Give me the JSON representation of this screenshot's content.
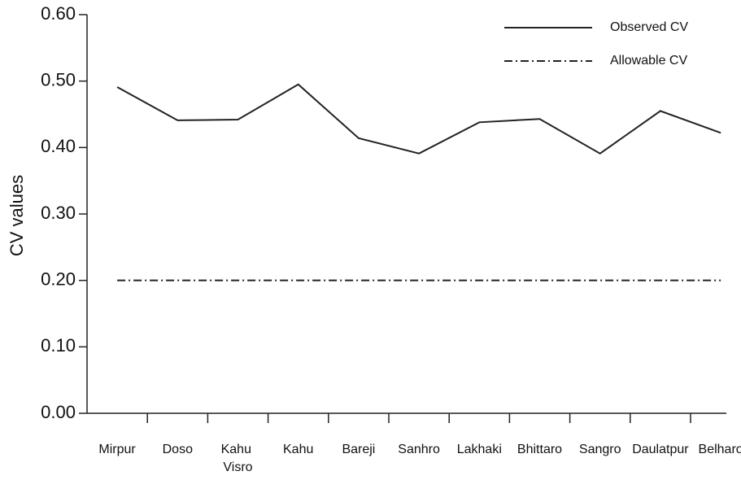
{
  "chart_data": {
    "type": "line",
    "y_label": "CV values",
    "categories": [
      "Mirpur",
      "Doso",
      "Kahu Visro",
      "Kahu",
      "Bareji",
      "Sanhro",
      "Lakhaki",
      "Bhittaro",
      "Sangro",
      "Daulatpur",
      "Belharo"
    ],
    "series": [
      {
        "name": "Observed CV",
        "color": "#222222",
        "dash": "solid",
        "values": [
          0.491,
          0.441,
          0.442,
          0.495,
          0.414,
          0.391,
          0.438,
          0.443,
          0.391,
          0.455,
          0.422
        ]
      },
      {
        "name": "Allowable CV",
        "color": "#222222",
        "dash": "dashdot",
        "values": [
          0.2,
          0.2,
          0.2,
          0.2,
          0.2,
          0.2,
          0.2,
          0.2,
          0.2,
          0.2,
          0.2
        ]
      }
    ],
    "ylim": [
      0,
      0.6
    ],
    "yticks": [
      {
        "value": 0,
        "label": "0.00"
      },
      {
        "value": 0.1,
        "label": "0.10"
      },
      {
        "value": 0.2,
        "label": "0.20"
      },
      {
        "value": 0.3,
        "label": "0.30"
      },
      {
        "value": 0.4,
        "label": "0.40"
      },
      {
        "value": 0.5,
        "label": "0.50"
      },
      {
        "value": 0.6,
        "label": "0.60"
      }
    ],
    "legend": "upper right"
  }
}
